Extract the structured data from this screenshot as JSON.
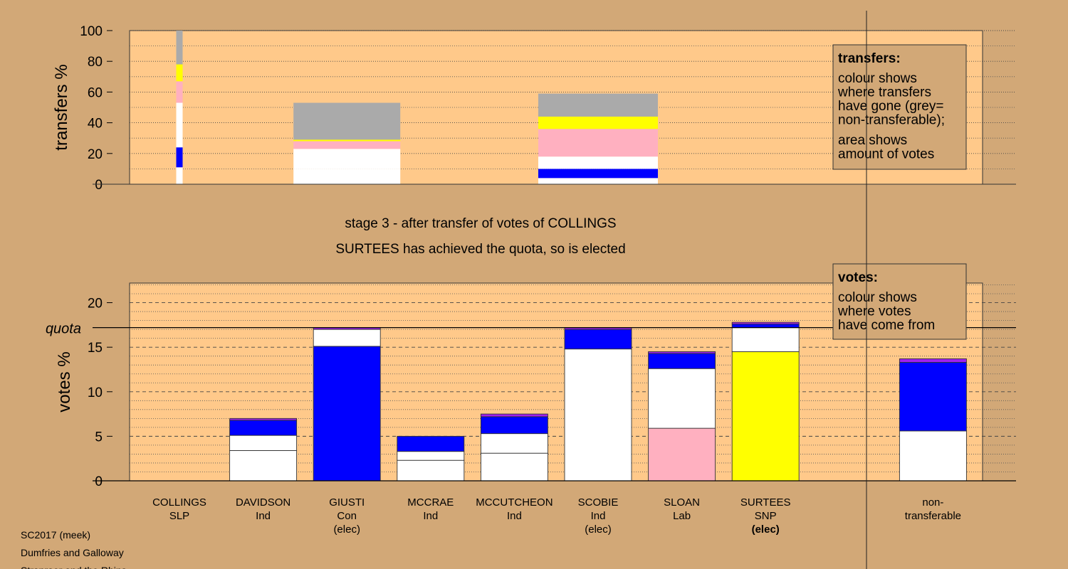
{
  "chart_data": [
    {
      "type": "stacked-columns",
      "y_label": "transfers %",
      "ylim": [
        0,
        100
      ],
      "yticks": [
        0,
        20,
        40,
        60,
        80,
        100
      ],
      "minor_yticks": [
        10,
        30,
        50,
        70,
        90
      ],
      "grid": true,
      "columns": [
        {
          "amount": 0.15,
          "values": [
            11,
            13,
            29,
            14,
            11,
            22
          ],
          "colors": [
            "#ffffff",
            "#0000ff",
            "#ffffff",
            "#ffb0c0",
            "#ffff00",
            "#aaaaaa"
          ]
        },
        {
          "amount": 2.5,
          "values": [
            10,
            13,
            5,
            1,
            24
          ],
          "colors": [
            "#ffffff",
            "#ffffff",
            "#ffb0c0",
            "#ffff00",
            "#aaaaaa"
          ]
        },
        {
          "amount": 2.8,
          "values": [
            4,
            6,
            8,
            18,
            8,
            15
          ],
          "colors": [
            "#ffffff",
            "#0000ff",
            "#ffffff",
            "#ffb0c0",
            "#ffff00",
            "#aaaaaa"
          ]
        }
      ],
      "legend": {
        "title": "transfers:",
        "paragraphs": [
          [
            "colour shows",
            "where transfers",
            "have gone (grey=",
            "non-transferable);"
          ],
          [
            "area shows",
            "amount of votes"
          ]
        ]
      }
    },
    {
      "type": "stacked-bar",
      "y_label": "votes %",
      "subtitle": [
        "stage 3 - after transfer of votes of COLLINGS",
        "SURTEES has achieved the quota, so is elected"
      ],
      "ylim": [
        0,
        22.2
      ],
      "yticks": [
        0,
        5,
        10,
        15,
        20
      ],
      "minor_yticks": [
        1,
        2,
        3,
        4,
        6,
        7,
        8,
        9,
        11,
        12,
        13,
        14,
        16,
        17,
        18,
        19,
        21,
        22
      ],
      "grid": true,
      "quota": 17.2,
      "quota_label": "quota",
      "bars": [
        {
          "label": [
            "COLLINGS",
            "SLP"
          ],
          "values": [
            0
          ],
          "colors": [
            "#ffffff"
          ]
        },
        {
          "label": [
            "DAVIDSON",
            "Ind"
          ],
          "values": [
            3.4,
            1.7,
            1.7,
            0.2
          ],
          "colors": [
            "#ffffff",
            "#ffffff",
            "#0000ff",
            "#a020f0"
          ]
        },
        {
          "label": [
            "GIUSTI",
            "Con",
            "(elec)"
          ],
          "values": [
            15.1,
            1.9,
            0.2
          ],
          "colors": [
            "#0000ff",
            "#ffffff",
            "#a020f0"
          ]
        },
        {
          "label": [
            "MCCRAE",
            "Ind"
          ],
          "values": [
            2.3,
            1.0,
            1.7
          ],
          "colors": [
            "#ffffff",
            "#ffffff",
            "#0000ff"
          ]
        },
        {
          "label": [
            "MCCUTCHEON",
            "Ind"
          ],
          "values": [
            3.1,
            2.2,
            1.9,
            0.3
          ],
          "colors": [
            "#ffffff",
            "#ffffff",
            "#0000ff",
            "#a020f0"
          ]
        },
        {
          "label": [
            "SCOBIE",
            "Ind",
            "(elec)"
          ],
          "values": [
            14.8,
            2.2,
            0.2
          ],
          "colors": [
            "#ffffff",
            "#0000ff",
            "#a020f0"
          ]
        },
        {
          "label": [
            "SLOAN",
            "Lab"
          ],
          "values": [
            5.9,
            6.7,
            1.7,
            0.2
          ],
          "colors": [
            "#ffb0c0",
            "#ffffff",
            "#0000ff",
            "#a020f0"
          ]
        },
        {
          "label": [
            "SURTEES",
            "SNP",
            "(elec)"
          ],
          "values": [
            14.5,
            2.7,
            0.4,
            0.2
          ],
          "colors": [
            "#ffff00",
            "#ffffff",
            "#0000ff",
            "#a020f0"
          ],
          "highlight": true
        },
        {
          "label": [
            "non-",
            "transferable"
          ],
          "values": [
            5.6,
            7.7,
            0.4
          ],
          "colors": [
            "#ffffff",
            "#0000ff",
            "#a020f0"
          ]
        }
      ],
      "legend": {
        "title": "votes:",
        "paragraphs": [
          [
            "colour shows",
            "where votes",
            "have come from"
          ]
        ]
      }
    }
  ],
  "footer": [
    "SC2017 (meek)",
    "Dumfries and Galloway",
    "Stranraer and the Rhins"
  ]
}
